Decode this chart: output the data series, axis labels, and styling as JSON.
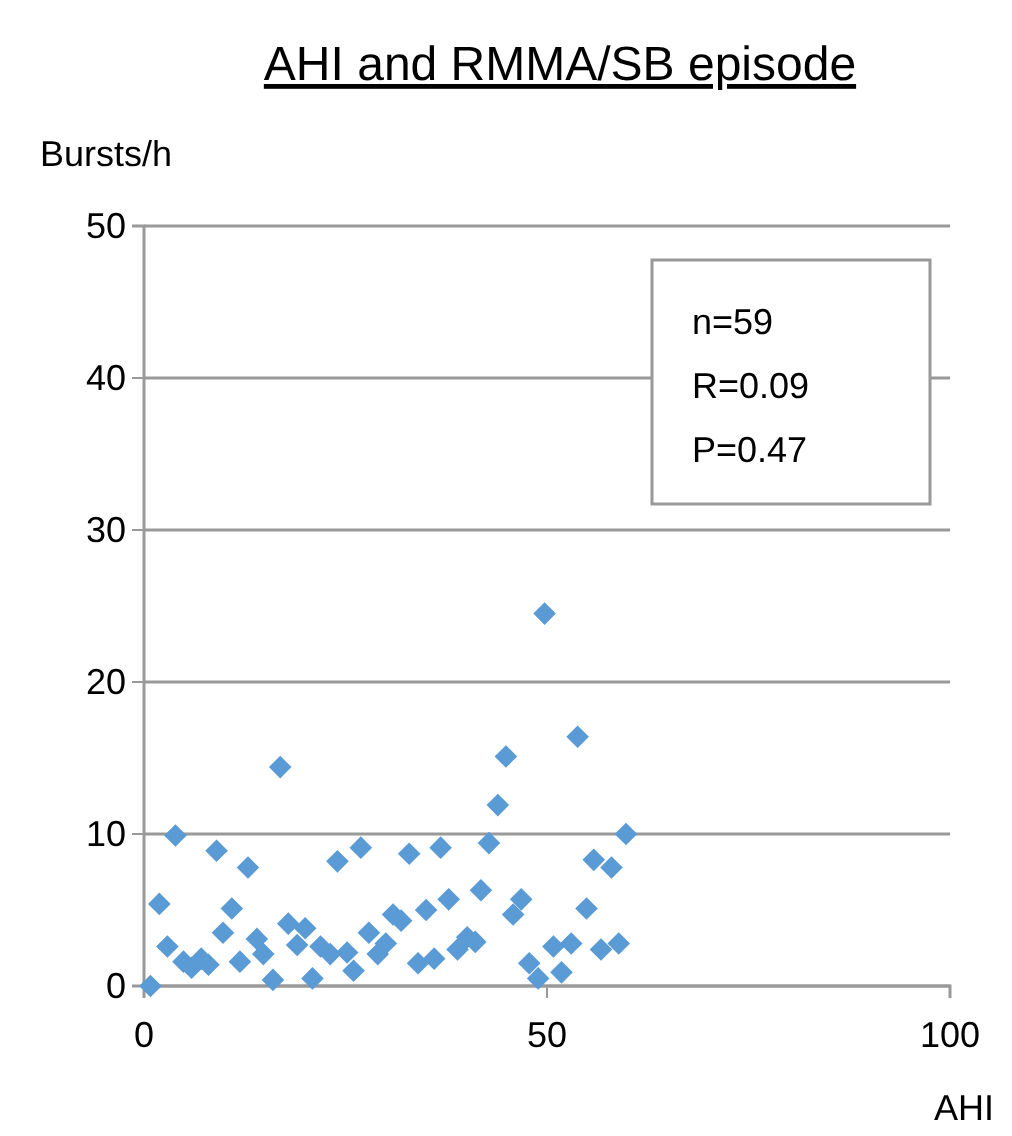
{
  "chart_data": {
    "type": "scatter",
    "title": "AHI and RMMA/SB  episode",
    "xlabel": "AHI",
    "ylabel": "Bursts/h",
    "x": [
      0.8,
      1.9,
      3.9,
      2.9,
      4.9,
      5.9,
      7.1,
      8,
      9,
      9.8,
      10.9,
      11.9,
      12.9,
      14,
      14.8,
      16,
      16.9,
      17.9,
      19,
      20,
      20.9,
      21.9,
      23.1,
      24,
      25.2,
      26,
      26.9,
      27.9,
      29,
      30,
      30.9,
      31.9,
      32.9,
      34,
      35,
      36,
      36.8,
      37.8,
      38.9,
      40.1,
      41.1,
      41.8,
      42.8,
      43.9,
      44.9,
      45.8,
      46.8,
      47.8,
      48.9,
      49.7,
      50.8,
      51.8,
      53,
      53.8,
      54.9,
      55.8,
      56.7,
      58,
      58.9,
      59.8
    ],
    "series": [
      {
        "color": "#5b9bd5",
        "values": [
          0,
          5.4,
          9.9,
          2.6,
          1.6,
          1.2,
          1.8,
          1.4,
          8.9,
          3.5,
          5.1,
          1.6,
          7.8,
          3.1,
          2.1,
          0.4,
          14.4,
          4.1,
          2.7,
          3.8,
          0.5,
          2.6,
          2.1,
          8.2,
          2.2,
          1.0,
          9.1,
          3.5,
          2.1,
          2.8,
          4.7,
          4.3,
          8.7,
          1.5,
          5.0,
          1.8,
          9.1,
          5.7,
          2.4,
          3.2,
          2.9,
          6.3,
          9.4,
          11.9,
          15.1,
          4.7,
          5.7,
          1.5,
          0.5,
          24.5,
          2.6,
          0.9,
          2.8,
          16.4,
          5.1,
          8.3,
          2.4,
          7.8,
          2.8,
          10.0
        ]
      }
    ],
    "xlim": [
      0,
      100
    ],
    "xticks": [
      0,
      50,
      100
    ],
    "ylim": [
      0,
      50
    ],
    "yticks": [
      0,
      10,
      20,
      30,
      40,
      50
    ],
    "grid": "y",
    "marker": "diamond",
    "annotations": [
      "n=59\nR=0.09\nP=0.47"
    ]
  }
}
